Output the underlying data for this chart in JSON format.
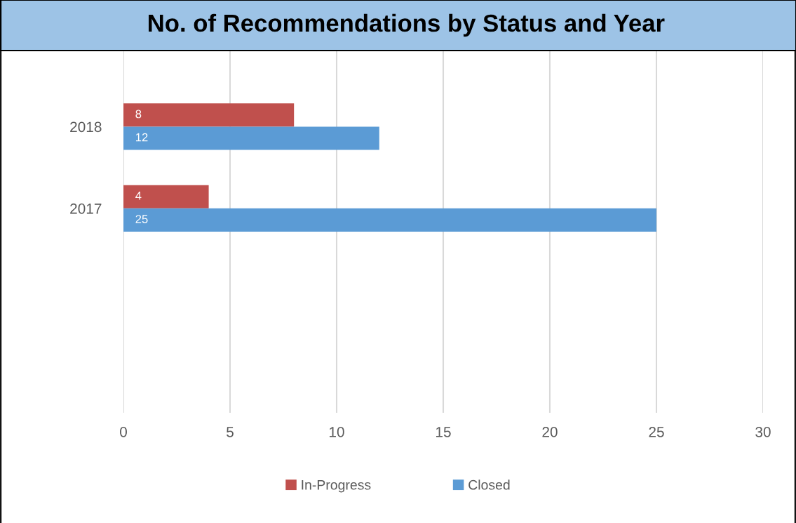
{
  "chart_data": {
    "type": "bar",
    "orientation": "horizontal",
    "title": "No. of Recommendations by Status and Year",
    "categories": [
      "2018",
      "2017",
      null,
      null
    ],
    "series": [
      {
        "name": "In-Progress",
        "color": "#c0504d",
        "values": [
          8,
          4,
          null,
          null
        ]
      },
      {
        "name": "Closed",
        "color": "#5b9bd5",
        "values": [
          12,
          25,
          null,
          null
        ]
      }
    ],
    "xlim": [
      0,
      30
    ],
    "xticks": [
      0,
      5,
      10,
      15,
      20,
      25,
      30
    ],
    "grid": "x",
    "legend": "bottom",
    "data_labels": true
  }
}
